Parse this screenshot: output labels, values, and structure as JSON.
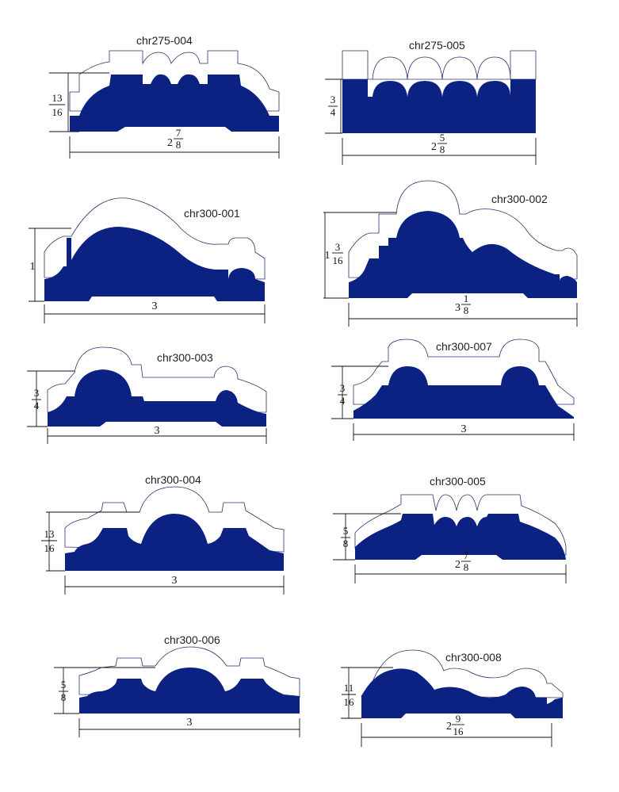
{
  "profiles": [
    {
      "id": "p1",
      "name": "chr275-004",
      "height": {
        "whole": "",
        "num": "13",
        "den": "16"
      },
      "width": {
        "whole": "2",
        "num": "7",
        "den": "8"
      }
    },
    {
      "id": "p2",
      "name": "chr275-005",
      "height": {
        "whole": "",
        "num": "3",
        "den": "4"
      },
      "width": {
        "whole": "2",
        "num": "5",
        "den": "8"
      }
    },
    {
      "id": "p3",
      "name": "chr300-001",
      "height": {
        "whole": "1",
        "num": "",
        "den": ""
      },
      "width": {
        "whole": "3",
        "num": "",
        "den": ""
      }
    },
    {
      "id": "p4",
      "name": "chr300-002",
      "height": {
        "whole": "1",
        "num": "3",
        "den": "16"
      },
      "width": {
        "whole": "3",
        "num": "1",
        "den": "8"
      }
    },
    {
      "id": "p5",
      "name": "chr300-003",
      "height": {
        "whole": "",
        "num": "3",
        "den": "4"
      },
      "width": {
        "whole": "3",
        "num": "",
        "den": ""
      }
    },
    {
      "id": "p6",
      "name": "chr300-007",
      "height": {
        "whole": "",
        "num": "3",
        "den": "4"
      },
      "width": {
        "whole": "3",
        "num": "",
        "den": ""
      }
    },
    {
      "id": "p7",
      "name": "chr300-004",
      "height": {
        "whole": "",
        "num": "13",
        "den": "16"
      },
      "width": {
        "whole": "3",
        "num": "",
        "den": ""
      }
    },
    {
      "id": "p8",
      "name": "chr300-005",
      "height": {
        "whole": "",
        "num": "5",
        "den": "8"
      },
      "width": {
        "whole": "2",
        "num": "7",
        "den": "8"
      }
    },
    {
      "id": "p9",
      "name": "chr300-006",
      "height": {
        "whole": "",
        "num": "5",
        "den": "8"
      },
      "width": {
        "whole": "3",
        "num": "",
        "den": ""
      }
    },
    {
      "id": "p10",
      "name": "chr300-008",
      "height": {
        "whole": "",
        "num": "11",
        "den": "16"
      },
      "width": {
        "whole": "2",
        "num": "9",
        "den": "16"
      }
    }
  ],
  "colors": {
    "profile_fill": "#0b2283",
    "outline": "#27306b"
  }
}
